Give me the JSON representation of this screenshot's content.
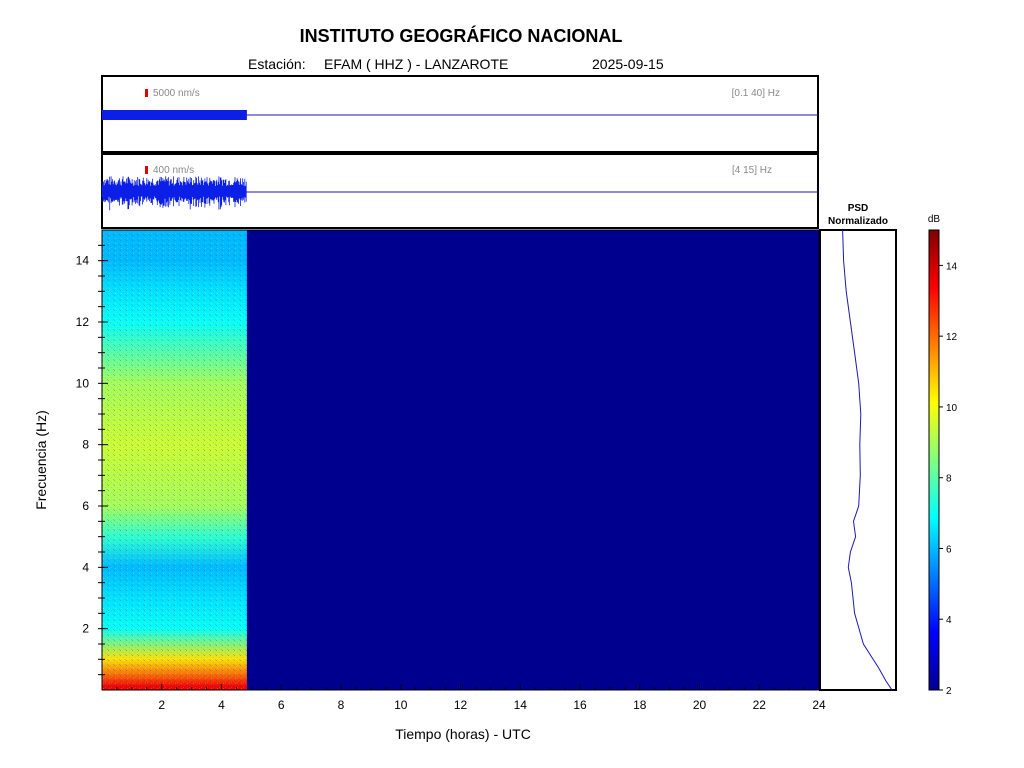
{
  "header": {
    "title": "INSTITUTO GEOGRÁFICO NACIONAL",
    "station_label": "Estación:",
    "station": "EFAM ( HHZ ) - LANZAROTE",
    "date": "2025-09-15"
  },
  "traces": [
    {
      "scale_label": "5000 nm/s",
      "band_label": "[0.1 40] Hz",
      "data_end_hour": 4.85
    },
    {
      "scale_label": "400 nm/s",
      "band_label": "[4 15] Hz",
      "data_end_hour": 4.85
    }
  ],
  "psd_panel": {
    "title_line1": "PSD",
    "title_line2": "Normalizado"
  },
  "colorbar": {
    "unit": "dB",
    "range": [
      2,
      15
    ],
    "ticks": [
      "2",
      "4",
      "6",
      "8",
      "10",
      "12",
      "14"
    ],
    "colormap": "jet"
  },
  "chart_data": {
    "type": "heatmap",
    "title": "INSTITUTO GEOGRÁFICO NACIONAL",
    "xlabel": "Tiempo (horas) - UTC",
    "ylabel": "Frecuencia  (Hz)",
    "xlim": [
      0,
      24
    ],
    "ylim": [
      0,
      15
    ],
    "x_ticks": [
      "2",
      "4",
      "6",
      "8",
      "10",
      "12",
      "14",
      "16",
      "18",
      "20",
      "22",
      "24"
    ],
    "y_ticks": [
      "2",
      "4",
      "6",
      "8",
      "10",
      "12",
      "14"
    ],
    "data_end_hour": 4.85,
    "spectrogram_profile_db": [
      {
        "freq": 0.1,
        "db": 13.5
      },
      {
        "freq": 0.5,
        "db": 12.0
      },
      {
        "freq": 1.0,
        "db": 10.5
      },
      {
        "freq": 2.0,
        "db": 7.0
      },
      {
        "freq": 3.0,
        "db": 6.5
      },
      {
        "freq": 4.0,
        "db": 6.0
      },
      {
        "freq": 5.0,
        "db": 7.5
      },
      {
        "freq": 6.0,
        "db": 9.0
      },
      {
        "freq": 8.0,
        "db": 9.5
      },
      {
        "freq": 10.0,
        "db": 9.0
      },
      {
        "freq": 11.0,
        "db": 8.0
      },
      {
        "freq": 12.0,
        "db": 7.0
      },
      {
        "freq": 13.0,
        "db": 6.5
      },
      {
        "freq": 14.0,
        "db": 6.0
      },
      {
        "freq": 15.0,
        "db": 6.0
      }
    ],
    "background_db": 2,
    "psd_normalized": [
      {
        "freq": 0.0,
        "value": 1.0
      },
      {
        "freq": 0.3,
        "value": 0.88
      },
      {
        "freq": 0.7,
        "value": 0.75
      },
      {
        "freq": 1.5,
        "value": 0.45
      },
      {
        "freq": 2.5,
        "value": 0.28
      },
      {
        "freq": 3.5,
        "value": 0.22
      },
      {
        "freq": 4.0,
        "value": 0.16
      },
      {
        "freq": 4.5,
        "value": 0.2
      },
      {
        "freq": 5.0,
        "value": 0.3
      },
      {
        "freq": 5.5,
        "value": 0.26
      },
      {
        "freq": 6.0,
        "value": 0.36
      },
      {
        "freq": 7.0,
        "value": 0.39
      },
      {
        "freq": 8.0,
        "value": 0.38
      },
      {
        "freq": 9.0,
        "value": 0.4
      },
      {
        "freq": 10.0,
        "value": 0.36
      },
      {
        "freq": 11.0,
        "value": 0.28
      },
      {
        "freq": 12.0,
        "value": 0.2
      },
      {
        "freq": 13.0,
        "value": 0.12
      },
      {
        "freq": 14.0,
        "value": 0.07
      },
      {
        "freq": 15.0,
        "value": 0.05
      }
    ]
  }
}
